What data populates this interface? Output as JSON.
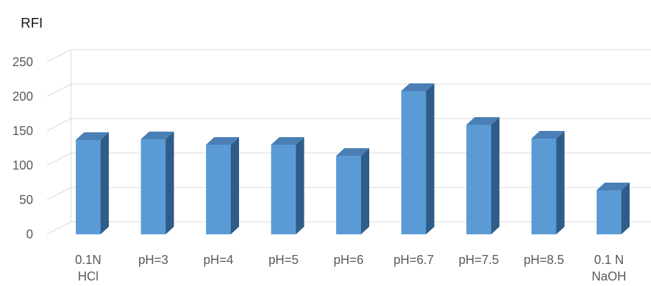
{
  "chart_data": {
    "type": "bar",
    "ylabel": "RFI",
    "xlabel": "",
    "ylim": [
      0,
      250
    ],
    "yticks": [
      0,
      50,
      100,
      150,
      200,
      250
    ],
    "grid": true,
    "style": "3d-column",
    "categories": [
      [
        "0.1N",
        "HCl"
      ],
      [
        "pH=3"
      ],
      [
        "pH=4"
      ],
      [
        "pH=5"
      ],
      [
        "pH=6"
      ],
      [
        "pH=6.7"
      ],
      [
        "pH=7.5"
      ],
      [
        "pH=8.5"
      ],
      [
        "0.1 N",
        "NaOH"
      ]
    ],
    "values": [
      137,
      138,
      130,
      130,
      114,
      208,
      159,
      139,
      64
    ],
    "colors": {
      "front": "#5b9bd5",
      "side": "#2f5d8a",
      "top": "#4a7fb5"
    }
  }
}
